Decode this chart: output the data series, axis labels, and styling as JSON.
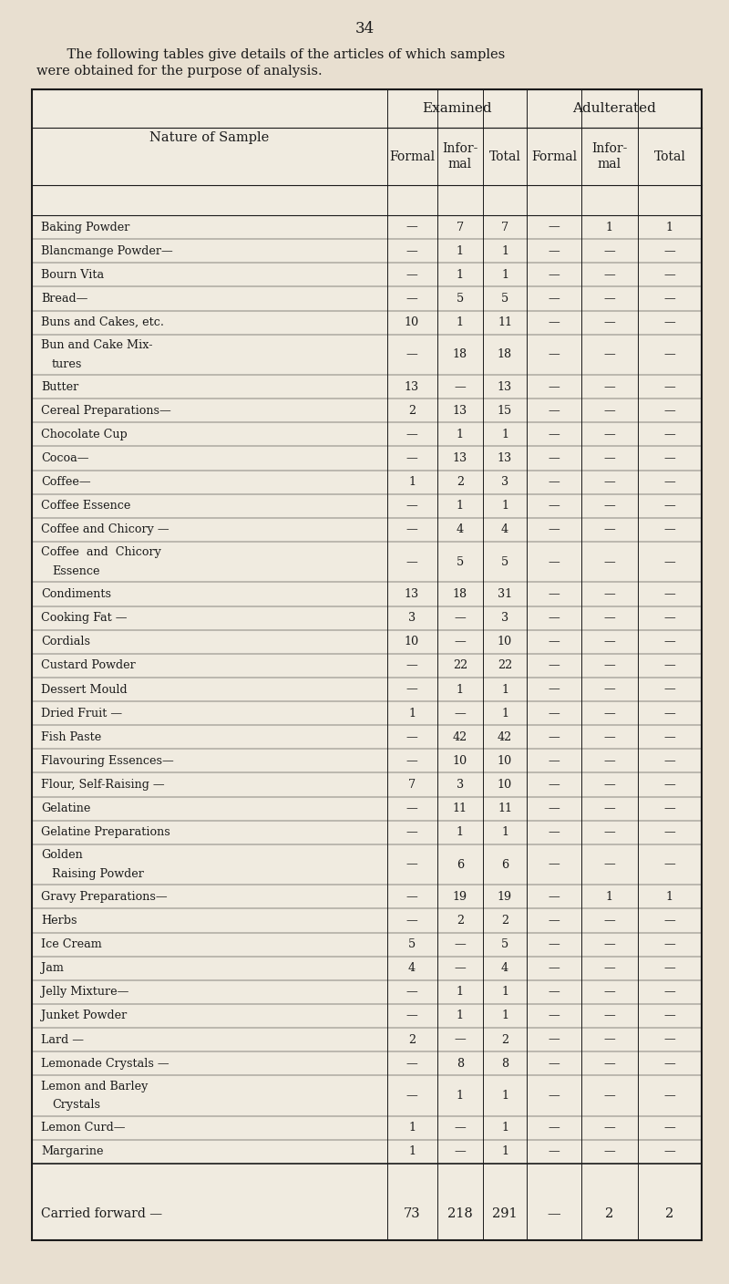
{
  "page_number": "34",
  "intro_line1": "    The following tables give details of the articles of which samples",
  "intro_line2": "were obtained for the purpose of analysis.",
  "bg_color": "#e8dfd0",
  "table_bg": "#f0ebe0",
  "header1": "Examined",
  "header2": "Adulterated",
  "row_label_header": "Nature of Sample",
  "rows": [
    {
      "label": "Baking Powder",
      "dots": "......",
      "ex_f": "—",
      "ex_i": "7",
      "ex_t": "7",
      "ad_f": "—",
      "ad_i": "1",
      "ad_t": "1",
      "twoline": false
    },
    {
      "label": "Blancmange Powder—",
      "dots": "",
      "ex_f": "—",
      "ex_i": "1",
      "ex_t": "1",
      "ad_f": "—",
      "ad_i": "—",
      "ad_t": "—",
      "twoline": false
    },
    {
      "label": "Bourn Vita",
      "dots": "......",
      "ex_f": "—",
      "ex_i": "1",
      "ex_t": "1",
      "ad_f": "—",
      "ad_i": "—",
      "ad_t": "—",
      "twoline": false
    },
    {
      "label": "Bread—",
      "dots": "......",
      "ex_f": "—",
      "ex_i": "5",
      "ex_t": "5",
      "ad_f": "—",
      "ad_i": "—",
      "ad_t": "—",
      "twoline": false
    },
    {
      "label": "Buns and Cakes, etc.",
      "dots": "",
      "ex_f": "10",
      "ex_i": "1",
      "ex_t": "11",
      "ad_f": "—",
      "ad_i": "—",
      "ad_t": "—",
      "twoline": false
    },
    {
      "label1": "Bun and Cake Mix-",
      "label2": "    tures",
      "dots": "...... ......",
      "ex_f": "—",
      "ex_i": "18",
      "ex_t": "18",
      "ad_f": "—",
      "ad_i": "—",
      "ad_t": "—",
      "twoline": true
    },
    {
      "label": "Butter",
      "dots": "...... ......",
      "ex_f": "13",
      "ex_i": "—",
      "ex_t": "13",
      "ad_f": "—",
      "ad_i": "—",
      "ad_t": "—",
      "twoline": false
    },
    {
      "label": "Cereal Preparations—",
      "dots": "",
      "ex_f": "2",
      "ex_i": "13",
      "ex_t": "15",
      "ad_f": "—",
      "ad_i": "—",
      "ad_t": "—",
      "twoline": false
    },
    {
      "label": "Chocolate Cup",
      "dots": "......",
      "ex_f": "—",
      "ex_i": "1",
      "ex_t": "1",
      "ad_f": "—",
      "ad_i": "—",
      "ad_t": "—",
      "twoline": false
    },
    {
      "label": "Cocoa—",
      "dots": "...... ......",
      "ex_f": "—",
      "ex_i": "13",
      "ex_t": "13",
      "ad_f": "—",
      "ad_i": "—",
      "ad_t": "—",
      "twoline": false
    },
    {
      "label": "Coffee—",
      "dots": "...... ......",
      "ex_f": "1",
      "ex_i": "2",
      "ex_t": "3",
      "ad_f": "—",
      "ad_i": "—",
      "ad_t": "—",
      "twoline": false
    },
    {
      "label": "Coffee Essence",
      "dots": "......",
      "ex_f": "—",
      "ex_i": "1",
      "ex_t": "1",
      "ad_f": "—",
      "ad_i": "—",
      "ad_t": "—",
      "twoline": false
    },
    {
      "label": "Coffee and Chicory —",
      "dots": "",
      "ex_f": "—",
      "ex_i": "4",
      "ex_t": "4",
      "ad_f": "—",
      "ad_i": "—",
      "ad_t": "—",
      "twoline": false
    },
    {
      "label1": "Coffee  and  Chicory",
      "label2": "    Essence",
      "dots": "...... ......",
      "ex_f": "—",
      "ex_i": "5",
      "ex_t": "5",
      "ad_f": "—",
      "ad_i": "—",
      "ad_t": "—",
      "twoline": true
    },
    {
      "label": "Condiments",
      "dots": "...... ......",
      "ex_f": "13",
      "ex_i": "18",
      "ex_t": "31",
      "ad_f": "—",
      "ad_i": "—",
      "ad_t": "—",
      "twoline": false
    },
    {
      "label": "Cooking Fat —",
      "dots": "......",
      "ex_f": "3",
      "ex_i": "—",
      "ex_t": "3",
      "ad_f": "—",
      "ad_i": "—",
      "ad_t": "—",
      "twoline": false
    },
    {
      "label": "Cordials",
      "dots": "...... ......",
      "ex_f": "10",
      "ex_i": "—",
      "ex_t": "10",
      "ad_f": "—",
      "ad_i": "—",
      "ad_t": "—",
      "twoline": false
    },
    {
      "label": "Custard Powder",
      "dots": "......",
      "ex_f": "—",
      "ex_i": "22",
      "ex_t": "22",
      "ad_f": "—",
      "ad_i": "—",
      "ad_t": "—",
      "twoline": false
    },
    {
      "label": "Dessert Mould",
      "dots": "......",
      "ex_f": "—",
      "ex_i": "1",
      "ex_t": "1",
      "ad_f": "—",
      "ad_i": "—",
      "ad_t": "—",
      "twoline": false
    },
    {
      "label": "Dried Fruit —",
      "dots": "......",
      "ex_f": "1",
      "ex_i": "—",
      "ex_t": "1",
      "ad_f": "—",
      "ad_i": "—",
      "ad_t": "—",
      "twoline": false
    },
    {
      "label": "Fish Paste",
      "dots": "...... ......",
      "ex_f": "—",
      "ex_i": "42",
      "ex_t": "42",
      "ad_f": "—",
      "ad_i": "—",
      "ad_t": "—",
      "twoline": false
    },
    {
      "label": "Flavouring Essences—",
      "dots": "",
      "ex_f": "—",
      "ex_i": "10",
      "ex_t": "10",
      "ad_f": "—",
      "ad_i": "—",
      "ad_t": "—",
      "twoline": false
    },
    {
      "label": "Flour, Self-Raising —",
      "dots": "",
      "ex_f": "7",
      "ex_i": "3",
      "ex_t": "10",
      "ad_f": "—",
      "ad_i": "—",
      "ad_t": "—",
      "twoline": false
    },
    {
      "label": "Gelatine",
      "dots": "...... ......",
      "ex_f": "—",
      "ex_i": "11",
      "ex_t": "11",
      "ad_f": "—",
      "ad_i": "—",
      "ad_t": "—",
      "twoline": false
    },
    {
      "label": "Gelatine Preparations",
      "dots": "",
      "ex_f": "—",
      "ex_i": "1",
      "ex_t": "1",
      "ad_f": "—",
      "ad_i": "—",
      "ad_t": "—",
      "twoline": false
    },
    {
      "label1": "Golden",
      "label2": "        Raising Powder",
      "dots": "",
      "ex_f": "—",
      "ex_i": "6",
      "ex_t": "6",
      "ad_f": "—",
      "ad_i": "—",
      "ad_t": "—",
      "twoline": true
    },
    {
      "label": "Gravy Preparations—",
      "dots": "",
      "ex_f": "—",
      "ex_i": "19",
      "ex_t": "19",
      "ad_f": "—",
      "ad_i": "1",
      "ad_t": "1",
      "twoline": false
    },
    {
      "label": "Herbs",
      "dots": "...... ......",
      "ex_f": "—",
      "ex_i": "2",
      "ex_t": "2",
      "ad_f": "—",
      "ad_i": "—",
      "ad_t": "—",
      "twoline": false
    },
    {
      "label": "Ice Cream",
      "dots": "...... ......",
      "ex_f": "5",
      "ex_i": "—",
      "ex_t": "5",
      "ad_f": "—",
      "ad_i": "—",
      "ad_t": "—",
      "twoline": false
    },
    {
      "label": "Jam",
      "dots": "...... ......",
      "ex_f": "4",
      "ex_i": "—",
      "ex_t": "4",
      "ad_f": "—",
      "ad_i": "—",
      "ad_t": "—",
      "twoline": false
    },
    {
      "label": "Jelly Mixture—",
      "dots": "......",
      "ex_f": "—",
      "ex_i": "1",
      "ex_t": "1",
      "ad_f": "—",
      "ad_i": "—",
      "ad_t": "—",
      "twoline": false
    },
    {
      "label": "Junket Powder",
      "dots": "......",
      "ex_f": "—",
      "ex_i": "1",
      "ex_t": "1",
      "ad_f": "—",
      "ad_i": "—",
      "ad_t": "—",
      "twoline": false
    },
    {
      "label": "Lard —",
      "dots": "...... ......",
      "ex_f": "2",
      "ex_i": "—",
      "ex_t": "2",
      "ad_f": "—",
      "ad_i": "—",
      "ad_t": "—",
      "twoline": false
    },
    {
      "label": "Lemonade Crystals —",
      "dots": "",
      "ex_f": "—",
      "ex_i": "8",
      "ex_t": "8",
      "ad_f": "—",
      "ad_i": "—",
      "ad_t": "—",
      "twoline": false
    },
    {
      "label1": "Lemon and Barley",
      "label2": "    Crystals",
      "dots": "...... ......",
      "ex_f": "—",
      "ex_i": "1",
      "ex_t": "1",
      "ad_f": "—",
      "ad_i": "—",
      "ad_t": "—",
      "twoline": true
    },
    {
      "label": "Lemon Curd—",
      "dots": "......",
      "ex_f": "1",
      "ex_i": "—",
      "ex_t": "1",
      "ad_f": "—",
      "ad_i": "—",
      "ad_t": "—",
      "twoline": false
    },
    {
      "label": "Margarine",
      "dots": "...... ......",
      "ex_f": "1",
      "ex_i": "—",
      "ex_t": "1",
      "ad_f": "—",
      "ad_i": "—",
      "ad_t": "—",
      "twoline": false
    }
  ],
  "footer": {
    "label": "Carried forward —",
    "ex_f": "73",
    "ex_i": "218",
    "ex_t": "291",
    "ad_f": "—",
    "ad_i": "2",
    "ad_t": "2"
  }
}
